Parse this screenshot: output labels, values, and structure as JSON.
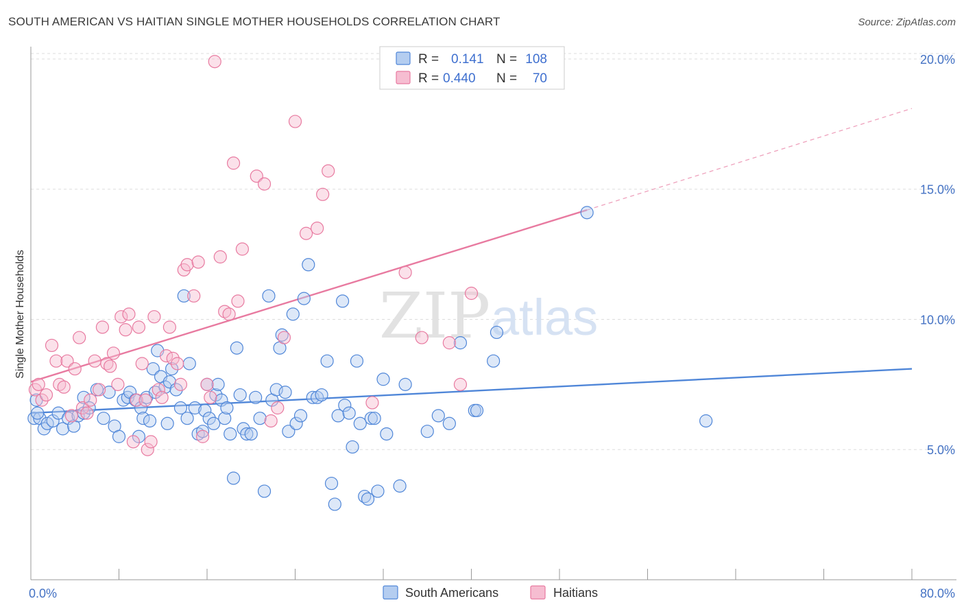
{
  "title": "SOUTH AMERICAN VS HAITIAN SINGLE MOTHER HOUSEHOLDS CORRELATION CHART",
  "source": "Source: ZipAtlas.com",
  "watermark": {
    "zip": "ZIP",
    "atlas": "atlas"
  },
  "legend": {
    "r_label": "R =",
    "n_label": "N =",
    "rows": [
      {
        "series": "South Americans",
        "r": "0.141",
        "n": "108"
      },
      {
        "series": "Haitians",
        "r": "0.440",
        "n": "70"
      }
    ]
  },
  "chart_data": {
    "type": "scatter",
    "title": "SOUTH AMERICAN VS HAITIAN SINGLE MOTHER HOUSEHOLDS CORRELATION CHART",
    "xlabel": "",
    "ylabel": "Single Mother Households",
    "xlim": [
      0,
      80
    ],
    "ylim": [
      0,
      21
    ],
    "x_tick_labels": [
      "0.0%",
      "80.0%"
    ],
    "y_ticks": [
      5,
      10,
      15,
      20
    ],
    "y_tick_labels": [
      "5.0%",
      "10.0%",
      "15.0%",
      "20.0%"
    ],
    "grid": true,
    "legend_position": "top-center",
    "colors": {
      "South Americans": "#4f86d8",
      "Haitians": "#e87aa0"
    },
    "series": [
      {
        "name": "South Americans",
        "color": "#4f86d8",
        "trend": {
          "x": [
            0,
            80
          ],
          "y": [
            6.4,
            8.1
          ],
          "style": "solid"
        },
        "points": [
          [
            0.3,
            6.2
          ],
          [
            0.5,
            6.9
          ],
          [
            0.8,
            6.2
          ],
          [
            1.2,
            5.8
          ],
          [
            1.5,
            6.0
          ],
          [
            2.0,
            6.1
          ],
          [
            2.5,
            6.4
          ],
          [
            2.9,
            5.8
          ],
          [
            3.4,
            6.2
          ],
          [
            3.9,
            5.9
          ],
          [
            4.3,
            6.3
          ],
          [
            4.8,
            6.4
          ],
          [
            4.8,
            7.0
          ],
          [
            5.3,
            6.6
          ],
          [
            6.0,
            7.3
          ],
          [
            6.6,
            6.2
          ],
          [
            7.1,
            7.2
          ],
          [
            7.6,
            5.9
          ],
          [
            8.0,
            5.5
          ],
          [
            8.4,
            6.9
          ],
          [
            8.8,
            7.0
          ],
          [
            9.0,
            7.2
          ],
          [
            9.5,
            6.9
          ],
          [
            9.8,
            5.5
          ],
          [
            10.0,
            6.6
          ],
          [
            10.2,
            6.2
          ],
          [
            10.5,
            7.0
          ],
          [
            10.8,
            6.1
          ],
          [
            11.1,
            8.1
          ],
          [
            11.3,
            7.2
          ],
          [
            11.5,
            8.8
          ],
          [
            11.8,
            7.8
          ],
          [
            12.2,
            7.4
          ],
          [
            12.4,
            6.0
          ],
          [
            12.6,
            7.6
          ],
          [
            12.8,
            8.1
          ],
          [
            13.2,
            7.3
          ],
          [
            13.6,
            6.6
          ],
          [
            13.9,
            10.9
          ],
          [
            14.2,
            6.2
          ],
          [
            14.4,
            8.3
          ],
          [
            14.9,
            6.6
          ],
          [
            15.2,
            5.6
          ],
          [
            15.6,
            5.7
          ],
          [
            15.8,
            6.5
          ],
          [
            16.0,
            7.5
          ],
          [
            16.2,
            6.2
          ],
          [
            16.6,
            6.0
          ],
          [
            16.8,
            7.1
          ],
          [
            17.0,
            7.5
          ],
          [
            17.3,
            6.9
          ],
          [
            17.6,
            6.2
          ],
          [
            17.8,
            6.6
          ],
          [
            18.1,
            5.6
          ],
          [
            18.4,
            3.9
          ],
          [
            18.7,
            8.9
          ],
          [
            19.0,
            7.1
          ],
          [
            19.3,
            5.8
          ],
          [
            19.6,
            5.6
          ],
          [
            20.0,
            5.6
          ],
          [
            20.4,
            7.0
          ],
          [
            20.8,
            6.2
          ],
          [
            21.2,
            3.4
          ],
          [
            21.6,
            10.9
          ],
          [
            21.9,
            6.9
          ],
          [
            22.3,
            7.3
          ],
          [
            22.6,
            8.9
          ],
          [
            22.8,
            9.4
          ],
          [
            23.1,
            7.2
          ],
          [
            23.4,
            5.7
          ],
          [
            23.8,
            10.2
          ],
          [
            24.1,
            6.0
          ],
          [
            24.5,
            6.3
          ],
          [
            24.8,
            10.8
          ],
          [
            25.2,
            12.1
          ],
          [
            25.6,
            7.0
          ],
          [
            26.0,
            7.0
          ],
          [
            26.4,
            7.1
          ],
          [
            26.9,
            8.4
          ],
          [
            27.3,
            3.7
          ],
          [
            27.6,
            2.9
          ],
          [
            27.9,
            6.3
          ],
          [
            28.3,
            10.7
          ],
          [
            28.5,
            6.7
          ],
          [
            28.9,
            6.4
          ],
          [
            29.2,
            5.1
          ],
          [
            29.6,
            8.4
          ],
          [
            29.9,
            6.0
          ],
          [
            30.3,
            3.2
          ],
          [
            30.6,
            3.1
          ],
          [
            30.9,
            6.2
          ],
          [
            31.2,
            6.2
          ],
          [
            31.5,
            3.4
          ],
          [
            32.0,
            7.7
          ],
          [
            32.3,
            5.6
          ],
          [
            33.5,
            3.6
          ],
          [
            34.0,
            7.5
          ],
          [
            36.0,
            5.7
          ],
          [
            37.0,
            6.3
          ],
          [
            38.0,
            6.0
          ],
          [
            39.0,
            9.1
          ],
          [
            40.3,
            6.5
          ],
          [
            40.5,
            6.5
          ],
          [
            42.0,
            8.4
          ],
          [
            42.3,
            9.5
          ],
          [
            61.3,
            6.1
          ],
          [
            50.5,
            14.1
          ],
          [
            0.6,
            6.4
          ]
        ]
      },
      {
        "name": "Haitians",
        "color": "#e87aa0",
        "trend": {
          "x": [
            0,
            50.5
          ],
          "y": [
            7.6,
            14.2
          ],
          "style": "solid",
          "extended": {
            "x": [
              50.5,
              80
            ],
            "y": [
              14.2,
              18.1
            ],
            "style": "dashed"
          }
        },
        "points": [
          [
            0.4,
            7.3
          ],
          [
            0.7,
            7.5
          ],
          [
            1.0,
            6.9
          ],
          [
            1.4,
            7.1
          ],
          [
            1.9,
            9.0
          ],
          [
            2.3,
            8.4
          ],
          [
            2.6,
            7.5
          ],
          [
            3.0,
            7.4
          ],
          [
            3.3,
            8.4
          ],
          [
            3.7,
            6.3
          ],
          [
            4.0,
            8.1
          ],
          [
            4.4,
            9.3
          ],
          [
            4.7,
            6.6
          ],
          [
            5.1,
            6.4
          ],
          [
            5.4,
            6.9
          ],
          [
            5.8,
            8.4
          ],
          [
            6.2,
            7.3
          ],
          [
            6.5,
            9.7
          ],
          [
            6.9,
            8.3
          ],
          [
            7.2,
            8.2
          ],
          [
            7.5,
            8.7
          ],
          [
            7.9,
            7.5
          ],
          [
            8.2,
            10.1
          ],
          [
            8.6,
            9.6
          ],
          [
            8.9,
            10.2
          ],
          [
            9.3,
            5.3
          ],
          [
            9.6,
            6.9
          ],
          [
            9.8,
            9.7
          ],
          [
            10.1,
            8.3
          ],
          [
            10.4,
            6.9
          ],
          [
            10.6,
            5.0
          ],
          [
            10.9,
            5.3
          ],
          [
            11.2,
            10.1
          ],
          [
            11.6,
            7.3
          ],
          [
            11.9,
            7.0
          ],
          [
            12.3,
            8.6
          ],
          [
            12.6,
            9.7
          ],
          [
            12.9,
            8.5
          ],
          [
            13.3,
            8.3
          ],
          [
            13.6,
            7.5
          ],
          [
            13.9,
            11.9
          ],
          [
            14.2,
            12.1
          ],
          [
            14.8,
            10.9
          ],
          [
            15.2,
            12.2
          ],
          [
            15.6,
            5.5
          ],
          [
            16.0,
            7.5
          ],
          [
            16.3,
            7.0
          ],
          [
            16.7,
            19.9
          ],
          [
            17.2,
            12.4
          ],
          [
            17.6,
            10.3
          ],
          [
            18.0,
            10.2
          ],
          [
            18.4,
            16.0
          ],
          [
            18.8,
            10.7
          ],
          [
            19.2,
            12.7
          ],
          [
            20.5,
            15.5
          ],
          [
            21.2,
            15.2
          ],
          [
            21.8,
            6.1
          ],
          [
            22.4,
            6.6
          ],
          [
            23.0,
            9.3
          ],
          [
            24.0,
            17.6
          ],
          [
            25.0,
            13.3
          ],
          [
            26.0,
            13.5
          ],
          [
            26.5,
            14.8
          ],
          [
            27.0,
            15.7
          ],
          [
            34.0,
            11.8
          ],
          [
            38.0,
            9.1
          ],
          [
            39.0,
            7.5
          ],
          [
            40.0,
            11.0
          ],
          [
            35.5,
            9.3
          ],
          [
            31.0,
            6.8
          ]
        ]
      }
    ]
  }
}
